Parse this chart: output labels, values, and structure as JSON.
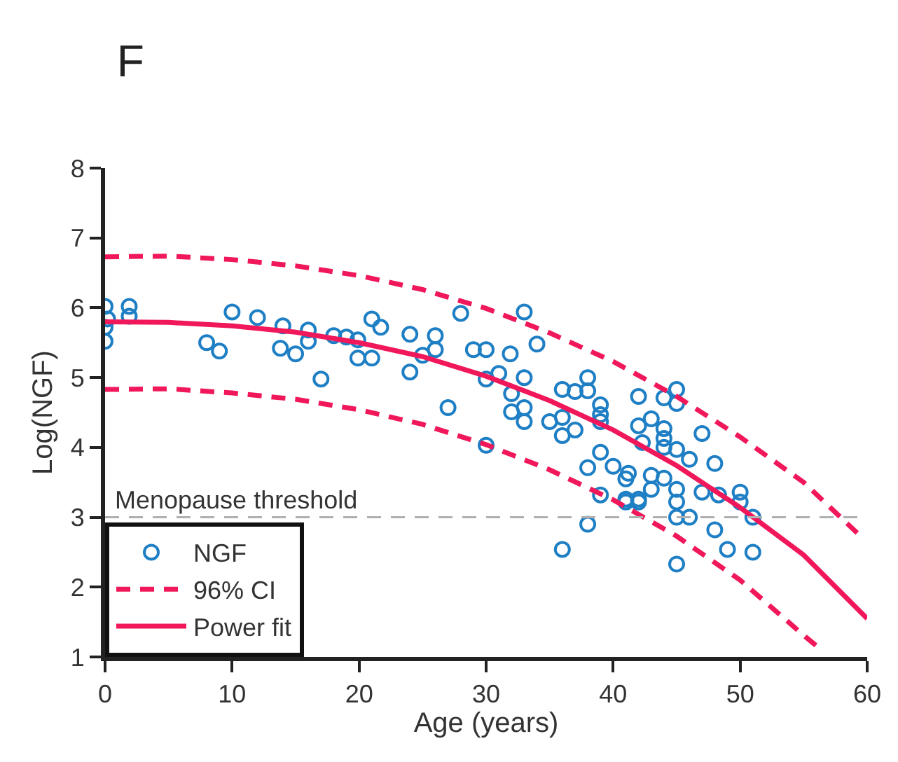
{
  "chart_data": {
    "type": "scatter",
    "title": "F",
    "xlabel": "Age (years)",
    "ylabel": "Log(NGF)",
    "xlim": [
      0,
      60
    ],
    "ylim": [
      1,
      8
    ],
    "xticks": [
      0,
      10,
      20,
      30,
      40,
      50,
      60
    ],
    "yticks": [
      1,
      2,
      3,
      4,
      5,
      6,
      7,
      8
    ],
    "legend": "bottom left",
    "ref_lines": [
      {
        "axis": "y",
        "value": 3,
        "label": "Menopause threshold",
        "color": "#b0b0b0",
        "line_style": "dashed"
      }
    ],
    "series": [
      {
        "name": "NGF",
        "marker": "circle",
        "color": "#1f7fc4",
        "x": [
          0,
          0,
          0,
          0.2,
          1.9,
          1.9,
          10,
          12,
          8,
          9,
          14,
          13.8,
          15,
          16,
          16,
          17,
          18,
          19,
          19.9,
          19.9,
          21,
          21,
          21.7,
          24,
          26,
          26,
          25,
          24,
          28,
          33,
          29,
          30,
          31.9,
          34,
          27,
          30,
          31,
          33,
          32,
          33,
          32,
          33,
          30,
          36,
          37,
          38,
          38,
          35,
          36,
          37,
          36,
          39,
          39,
          39,
          38,
          39,
          39,
          40,
          41.2,
          42,
          43,
          42.3,
          38,
          36,
          41,
          42,
          44,
          45,
          45,
          47,
          42,
          44,
          44,
          44,
          45,
          46,
          48,
          41,
          43,
          44,
          43,
          42,
          41,
          45,
          45,
          45,
          46,
          47,
          48.3,
          50,
          50,
          51,
          48,
          49,
          51,
          45
        ],
        "values": [
          6.02,
          5.72,
          5.52,
          5.84,
          6.02,
          5.88,
          5.94,
          5.86,
          5.5,
          5.38,
          5.74,
          5.42,
          5.34,
          5.68,
          5.52,
          4.98,
          5.6,
          5.58,
          5.54,
          5.28,
          5.84,
          5.28,
          5.72,
          5.62,
          5.6,
          5.4,
          5.32,
          5.08,
          5.92,
          5.94,
          5.4,
          5.4,
          5.34,
          5.48,
          4.57,
          4.98,
          5.06,
          5.0,
          4.77,
          4.57,
          4.51,
          4.37,
          4.03,
          4.83,
          4.8,
          5.0,
          4.81,
          4.37,
          4.43,
          4.25,
          4.17,
          4.61,
          4.47,
          4.37,
          3.71,
          3.93,
          3.32,
          3.73,
          3.63,
          4.73,
          4.41,
          4.07,
          2.9,
          2.54,
          3.26,
          3.26,
          4.71,
          4.83,
          4.63,
          4.2,
          4.31,
          4.27,
          4.13,
          4.0,
          3.97,
          3.83,
          3.77,
          3.55,
          3.6,
          3.56,
          3.4,
          3.22,
          3.22,
          3.4,
          3.22,
          3.0,
          3.0,
          3.36,
          3.32,
          3.36,
          3.22,
          3.0,
          2.82,
          2.54,
          2.5,
          2.33
        ]
      },
      {
        "name": "96% CI",
        "type": "line",
        "marker": "none",
        "line_style": "dashed",
        "color": "#f0185a",
        "x": [
          0,
          5,
          10,
          15,
          20,
          25,
          30,
          35,
          40,
          45,
          50,
          55,
          59.3
        ],
        "values": [
          6.73,
          6.74,
          6.69,
          6.6,
          6.46,
          6.26,
          5.99,
          5.64,
          5.23,
          4.73,
          4.15,
          3.5,
          2.76
        ]
      },
      {
        "type": "line",
        "marker": "none",
        "line_style": "dashed",
        "color": "#f0185a",
        "x": [
          0,
          5,
          10,
          15,
          20,
          25,
          30,
          35,
          40,
          45,
          50,
          55,
          56
        ],
        "values": [
          4.83,
          4.84,
          4.78,
          4.69,
          4.54,
          4.33,
          4.04,
          3.68,
          3.25,
          2.73,
          2.1,
          1.31,
          1.16
        ]
      },
      {
        "name": "Power fit",
        "type": "line",
        "marker": "none",
        "line_style": "solid",
        "color": "#f0185a",
        "x": [
          0,
          5,
          10,
          15,
          20,
          25,
          30,
          35,
          40,
          45,
          50,
          55,
          60
        ],
        "values": [
          5.8,
          5.79,
          5.74,
          5.65,
          5.5,
          5.3,
          5.02,
          4.67,
          4.25,
          3.74,
          3.14,
          2.46,
          1.55
        ]
      }
    ]
  }
}
